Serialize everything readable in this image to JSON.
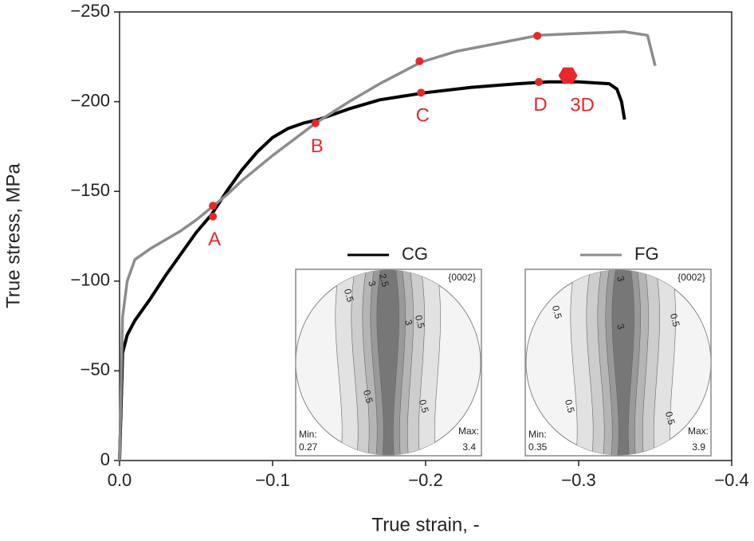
{
  "chart_data": {
    "type": "line",
    "xlabel": "True strain, -",
    "ylabel": "True stress, MPa",
    "xlim": [
      0,
      -0.4
    ],
    "ylim": [
      0,
      -250
    ],
    "xticks": [
      {
        "value": 0,
        "label": "0.0"
      },
      {
        "value": -0.1,
        "label": "−0.1"
      },
      {
        "value": -0.2,
        "label": "−0.2"
      },
      {
        "value": -0.3,
        "label": "−0.3"
      },
      {
        "value": -0.4,
        "label": "−0.4"
      }
    ],
    "yticks": [
      0,
      {
        "value": -50,
        "label": "−50"
      },
      {
        "value": -100,
        "label": "−100"
      },
      {
        "value": -150,
        "label": "−150"
      },
      {
        "value": -200,
        "label": "−200"
      },
      {
        "value": -250,
        "label": "−250"
      }
    ],
    "series": [
      {
        "name": "CG",
        "color": "#000000",
        "x": [
          0,
          -0.002,
          -0.005,
          -0.01,
          -0.02,
          -0.03,
          -0.04,
          -0.05,
          -0.06,
          -0.07,
          -0.08,
          -0.09,
          -0.1,
          -0.11,
          -0.12,
          -0.13,
          -0.15,
          -0.17,
          -0.2,
          -0.23,
          -0.26,
          -0.28,
          -0.3,
          -0.32,
          -0.325,
          -0.328,
          -0.33
        ],
        "values": [
          0,
          -60,
          -70,
          -78,
          -90,
          -103,
          -115,
          -127,
          -137,
          -150,
          -162,
          -172,
          -180,
          -185,
          -188,
          -190,
          -196,
          -201,
          -205,
          -208,
          -210,
          -211,
          -211,
          -210,
          -207,
          -200,
          -190
        ]
      },
      {
        "name": "FG",
        "color": "#8c8c8c",
        "x": [
          0,
          -0.002,
          -0.005,
          -0.01,
          -0.02,
          -0.03,
          -0.04,
          -0.05,
          -0.06,
          -0.07,
          -0.08,
          -0.1,
          -0.128,
          -0.15,
          -0.17,
          -0.197,
          -0.22,
          -0.25,
          -0.274,
          -0.3,
          -0.33,
          -0.345,
          -0.35
        ],
        "values": [
          0,
          -80,
          -100,
          -112,
          -118,
          -123,
          -128,
          -134,
          -141,
          -148,
          -156,
          -170,
          -188,
          -200,
          -210,
          -222,
          -228,
          -233,
          -237,
          -238,
          -239,
          -237,
          -220
        ]
      }
    ],
    "markers": [
      {
        "x": -0.061,
        "y": -136,
        "label": "A"
      },
      {
        "x": -0.128,
        "y": -188,
        "label": "B"
      },
      {
        "x": -0.197,
        "y": -205,
        "label": "C"
      },
      {
        "x": -0.274,
        "y": -211,
        "label": "D"
      },
      {
        "x": -0.061,
        "y": -142
      },
      {
        "x": -0.196,
        "y": -222.5
      },
      {
        "x": -0.273,
        "y": -236.7
      }
    ],
    "hexagon": {
      "x": -0.293,
      "y": -214.5,
      "label": "3D"
    },
    "marker_color": "#e8272a",
    "insets": [
      {
        "title": "{0002}",
        "min_label": "Min:",
        "min": 0.27,
        "max_label": "Max:",
        "max": 3.4,
        "contours": [
          "0.5",
          "0.5",
          "0.5",
          "0.5",
          "2.5",
          "3",
          "3"
        ]
      },
      {
        "title": "{0002}",
        "min_label": "Min:",
        "min": 0.35,
        "max_label": "Max:",
        "max": 3.9,
        "contours": [
          "0.5",
          "0.5",
          "0.5",
          "0.5",
          "3",
          "3"
        ]
      }
    ]
  }
}
